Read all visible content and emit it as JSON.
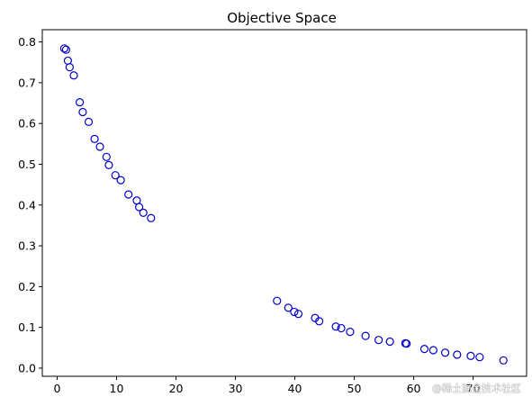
{
  "chart_data": {
    "type": "scatter",
    "title": "Objective Space",
    "xlabel": "",
    "ylabel": "",
    "xlim": [
      -2.5,
      79
    ],
    "ylim": [
      -0.02,
      0.83
    ],
    "xticks": [
      0,
      10,
      20,
      30,
      40,
      50,
      60,
      70
    ],
    "yticks": [
      0.0,
      0.1,
      0.2,
      0.3,
      0.4,
      0.5,
      0.6,
      0.7,
      0.8
    ],
    "xtick_labels": [
      "0",
      "10",
      "20",
      "30",
      "40",
      "50",
      "60",
      "70"
    ],
    "ytick_labels": [
      "0.0",
      "0.1",
      "0.2",
      "0.3",
      "0.4",
      "0.5",
      "0.6",
      "0.7",
      "0.8"
    ],
    "grid": false,
    "marker": "hollow-circle",
    "marker_color": "#0000cc",
    "x": [
      1.2,
      1.5,
      1.8,
      2.1,
      2.8,
      3.8,
      4.3,
      5.3,
      6.3,
      7.2,
      8.3,
      8.7,
      9.8,
      10.7,
      12.0,
      13.4,
      13.8,
      14.5,
      15.8,
      37.0,
      38.9,
      39.9,
      40.6,
      43.4,
      44.1,
      46.9,
      47.8,
      49.3,
      51.9,
      54.1,
      56.0,
      58.6,
      58.8,
      61.8,
      63.3,
      65.3,
      67.3,
      69.6,
      71.1,
      75.1
    ],
    "y": [
      0.784,
      0.781,
      0.754,
      0.738,
      0.718,
      0.652,
      0.628,
      0.604,
      0.562,
      0.543,
      0.518,
      0.498,
      0.473,
      0.461,
      0.426,
      0.411,
      0.395,
      0.381,
      0.368,
      0.165,
      0.148,
      0.138,
      0.133,
      0.123,
      0.115,
      0.102,
      0.098,
      0.089,
      0.079,
      0.069,
      0.065,
      0.061,
      0.06,
      0.047,
      0.044,
      0.038,
      0.033,
      0.03,
      0.027,
      0.019
    ]
  },
  "watermark": "@稀土掘金技术社区"
}
